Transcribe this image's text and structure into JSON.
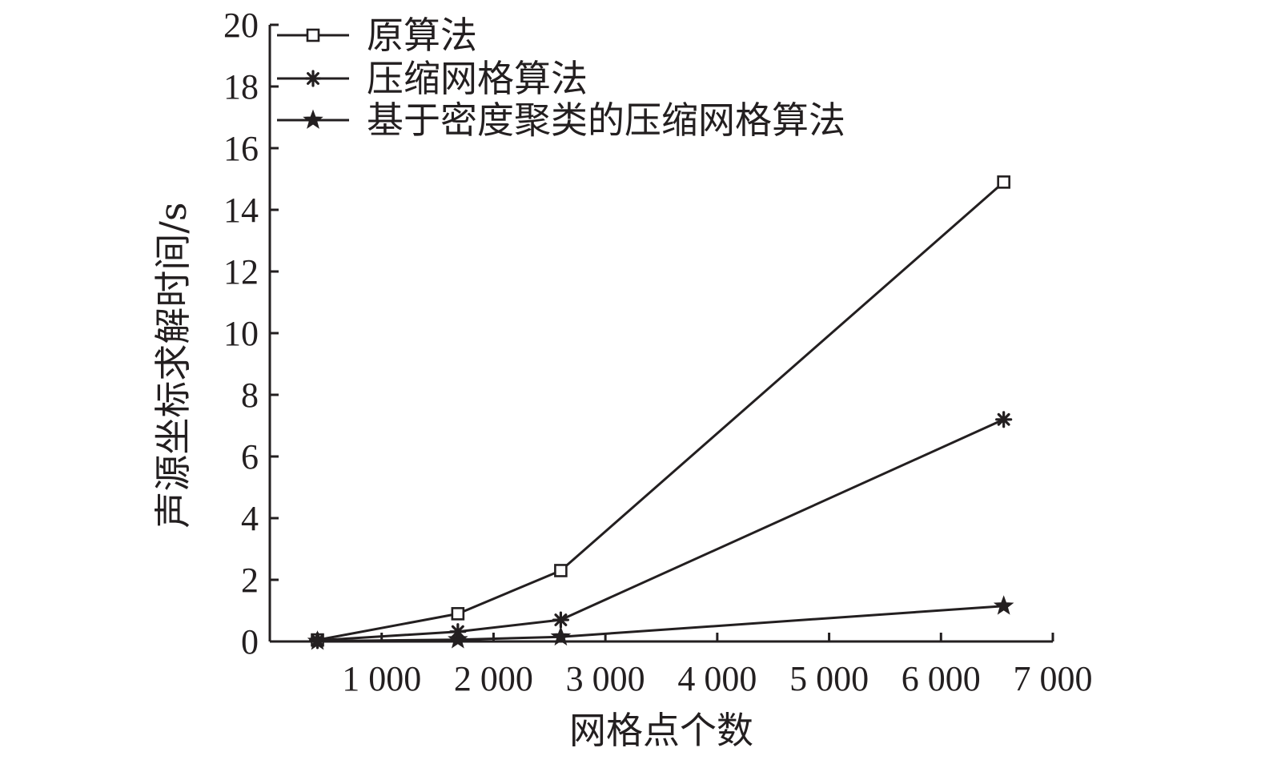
{
  "chart_data": {
    "type": "line",
    "title": "",
    "xlabel": "网格点个数",
    "ylabel": "声源坐标求解时间/s",
    "xlim": [
      0,
      7000
    ],
    "ylim": [
      0,
      20
    ],
    "x_ticks": [
      1000,
      2000,
      3000,
      4000,
      5000,
      6000,
      7000
    ],
    "x_tick_labels": [
      "1 000",
      "2 000",
      "3 000",
      "4 000",
      "5 000",
      "6 000",
      "7 000"
    ],
    "y_ticks": [
      0,
      2,
      4,
      6,
      8,
      10,
      12,
      14,
      16,
      18,
      20
    ],
    "y_tick_labels": [
      "0",
      "2",
      "4",
      "6",
      "8",
      "10",
      "12",
      "14",
      "16",
      "18",
      "20"
    ],
    "grid": false,
    "legend_position": "top-left",
    "x": [
      426,
      1681,
      2601,
      6561
    ],
    "series": [
      {
        "name": "原算法",
        "marker": "square",
        "values": [
          0.05,
          0.9,
          2.3,
          14.9
        ]
      },
      {
        "name": "压缩网格算法",
        "marker": "asterisk",
        "values": [
          0.03,
          0.32,
          0.7,
          7.2
        ]
      },
      {
        "name": "基于密度聚类的压缩网格算法",
        "marker": "star",
        "values": [
          0.01,
          0.06,
          0.15,
          1.15
        ]
      }
    ],
    "colors": {
      "line": "#231f20",
      "axis": "#231f20",
      "background": "#ffffff"
    }
  }
}
